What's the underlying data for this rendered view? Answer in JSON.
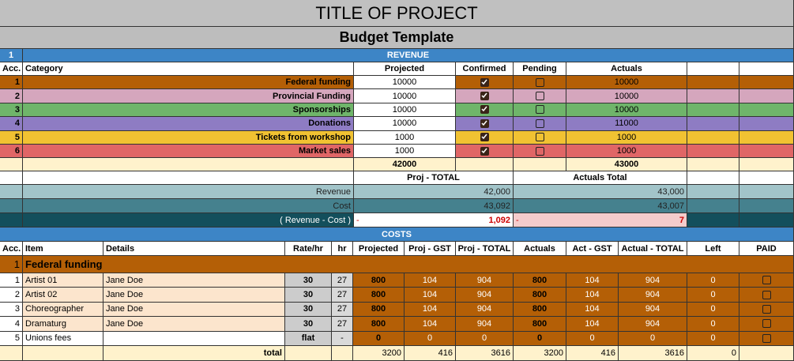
{
  "header": {
    "title": "TITLE OF PROJECT",
    "subtitle": "Budget Template"
  },
  "revenue": {
    "acc": "1",
    "label": "REVENUE",
    "columns": [
      "Acc.",
      "Category",
      "Projected",
      "Confirmed",
      "Pending",
      "Actuals"
    ],
    "rows": [
      {
        "acc": "1",
        "category": "Federal funding",
        "projected": "10000",
        "confirmed": true,
        "pending": false,
        "actuals": "10000"
      },
      {
        "acc": "2",
        "category": "Provincial Funding",
        "projected": "10000",
        "confirmed": true,
        "pending": false,
        "actuals": "10000"
      },
      {
        "acc": "3",
        "category": "Sponsorships",
        "projected": "10000",
        "confirmed": true,
        "pending": false,
        "actuals": "10000"
      },
      {
        "acc": "4",
        "category": "Donations",
        "projected": "10000",
        "confirmed": true,
        "pending": false,
        "actuals": "11000"
      },
      {
        "acc": "5",
        "category": "Tickets from workshop",
        "projected": "1000",
        "confirmed": true,
        "pending": false,
        "actuals": "1000"
      },
      {
        "acc": "6",
        "category": "Market sales",
        "projected": "1000",
        "confirmed": true,
        "pending": false,
        "actuals": "1000"
      }
    ],
    "projected_total": "42000",
    "actuals_total": "43000"
  },
  "summary": {
    "columns": [
      "Proj - TOTAL",
      "Actuals Total"
    ],
    "rows": [
      {
        "label": "Revenue",
        "proj": "42,000",
        "actuals": "43,000"
      },
      {
        "label": "Cost",
        "proj": "43,092",
        "actuals": "43,007"
      },
      {
        "label": "( Revenue - Cost )",
        "proj_sign": "-",
        "proj": "1,092",
        "actuals_sign": "-",
        "actuals": "7"
      }
    ]
  },
  "costs": {
    "label": "COSTS",
    "columns": [
      "Acc.",
      "Item",
      "Details",
      "Rate/hr",
      "hr",
      "Projected",
      "Proj - GST",
      "Proj - TOTAL",
      "Actuals",
      "Act - GST",
      "Actual - TOTAL",
      "Left",
      "PAID"
    ],
    "group": {
      "acc": "1",
      "name": "Federal funding"
    },
    "rows": [
      [
        "1",
        "Artist 01",
        "Jane Doe",
        "30",
        "27",
        "800",
        "104",
        "904",
        "800",
        "104",
        "904",
        "0",
        false
      ],
      [
        "2",
        "Artist 02",
        "Jane Doe",
        "30",
        "27",
        "800",
        "104",
        "904",
        "800",
        "104",
        "904",
        "0",
        false
      ],
      [
        "3",
        "Choreographer",
        "Jane Doe",
        "30",
        "27",
        "800",
        "104",
        "904",
        "800",
        "104",
        "904",
        "0",
        false
      ],
      [
        "4",
        "Dramaturg",
        "Jane Doe",
        "30",
        "27",
        "800",
        "104",
        "904",
        "800",
        "104",
        "904",
        "0",
        false
      ],
      [
        "5",
        "Unions fees",
        null,
        "flat",
        "-",
        "0",
        "0",
        "0",
        "0",
        "0",
        "0",
        "0",
        false
      ]
    ],
    "total": {
      "label": "total",
      "values": [
        "3200",
        "416",
        "3616",
        "3200",
        "416",
        "3616",
        "0"
      ]
    }
  }
}
